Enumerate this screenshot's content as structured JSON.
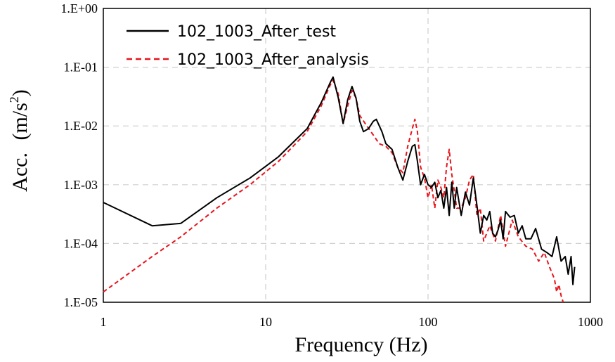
{
  "chart_data": {
    "type": "line",
    "scale": {
      "x": "log",
      "y": "log"
    },
    "xlabel": "Frequency (Hz)",
    "ylabel": "Acc. (m/s2)",
    "ylabel_parts": {
      "base": "Acc.",
      "unit_open": "(m/s",
      "unit_exp": "2",
      "unit_close": ")"
    },
    "xlim": [
      1,
      1000
    ],
    "ylim": [
      1e-05,
      1
    ],
    "x_ticks": [
      {
        "value": 1,
        "label": "1"
      },
      {
        "value": 10,
        "label": "10"
      },
      {
        "value": 100,
        "label": "100"
      },
      {
        "value": 1000,
        "label": "1000"
      }
    ],
    "y_ticks": [
      {
        "value": 1,
        "label": "1.E+00"
      },
      {
        "value": 0.1,
        "label": "1.E-01"
      },
      {
        "value": 0.01,
        "label": "1.E-02"
      },
      {
        "value": 0.001,
        "label": "1.E-03"
      },
      {
        "value": 0.0001,
        "label": "1.E-04"
      },
      {
        "value": 1e-05,
        "label": "1.E-05"
      }
    ],
    "grid": true,
    "legend_position": "top-left",
    "series": [
      {
        "name": "102_1003_After_test",
        "color": "#000000",
        "dash": "solid",
        "x": [
          1,
          2,
          3,
          5,
          8,
          12,
          18,
          22,
          25,
          26,
          28,
          30,
          32,
          34,
          36,
          38,
          40,
          43,
          46,
          48,
          52,
          55,
          60,
          65,
          70,
          75,
          80,
          83,
          86,
          90,
          95,
          100,
          105,
          110,
          115,
          120,
          125,
          130,
          135,
          140,
          145,
          150,
          160,
          170,
          180,
          190,
          200,
          210,
          220,
          230,
          240,
          250,
          260,
          270,
          280,
          290,
          300,
          320,
          340,
          360,
          380,
          400,
          430,
          460,
          500,
          540,
          580,
          620,
          660,
          700,
          730,
          760,
          780,
          800
        ],
        "y": [
          0.0005,
          0.0002,
          0.00022,
          0.0006,
          0.0013,
          0.003,
          0.009,
          0.025,
          0.055,
          0.068,
          0.03,
          0.011,
          0.028,
          0.047,
          0.03,
          0.012,
          0.008,
          0.009,
          0.012,
          0.013,
          0.008,
          0.005,
          0.004,
          0.002,
          0.0012,
          0.0025,
          0.0045,
          0.0048,
          0.0025,
          0.001,
          0.0015,
          0.001,
          0.0009,
          0.0011,
          0.0006,
          0.0008,
          0.0004,
          0.0009,
          0.0003,
          0.0011,
          0.0004,
          0.0009,
          0.0003,
          0.00075,
          0.00045,
          0.0013,
          0.00045,
          0.00015,
          0.0003,
          0.00025,
          0.00035,
          0.00015,
          0.00013,
          0.00017,
          0.00025,
          0.00012,
          0.00035,
          0.00028,
          0.0003,
          0.00015,
          0.0002,
          0.00012,
          0.00012,
          0.00018,
          8e-05,
          7e-05,
          6e-05,
          0.00013,
          5e-05,
          6e-05,
          3e-05,
          6e-05,
          2e-05,
          4e-05
        ]
      },
      {
        "name": "102_1003_After_analysis",
        "color": "#e8141c",
        "dash": "dashed",
        "x": [
          1,
          2,
          3,
          5,
          8,
          12,
          18,
          22,
          25,
          26,
          28,
          30,
          32,
          34,
          36,
          38,
          42,
          46,
          50,
          55,
          60,
          65,
          70,
          75,
          80,
          83,
          86,
          90,
          95,
          100,
          105,
          110,
          115,
          120,
          125,
          130,
          135,
          140,
          145,
          150,
          160,
          170,
          180,
          190,
          200,
          210,
          220,
          240,
          260,
          280,
          300,
          330,
          360,
          400,
          440,
          480,
          520,
          560,
          600,
          620,
          640,
          660,
          680
        ],
        "y": [
          1.5e-05,
          6e-05,
          0.00013,
          0.0004,
          0.001,
          0.0025,
          0.008,
          0.022,
          0.05,
          0.06,
          0.035,
          0.011,
          0.022,
          0.04,
          0.03,
          0.015,
          0.01,
          0.007,
          0.005,
          0.0045,
          0.0035,
          0.002,
          0.0016,
          0.0045,
          0.009,
          0.013,
          0.008,
          0.002,
          0.0013,
          0.0006,
          0.001,
          0.0004,
          0.0012,
          0.0009,
          0.0006,
          0.002,
          0.004,
          0.0015,
          0.0008,
          0.0004,
          0.0004,
          0.0006,
          0.0012,
          0.0015,
          0.0003,
          0.0004,
          0.00011,
          0.0002,
          0.00011,
          0.0003,
          9e-05,
          0.00025,
          0.00013,
          9e-05,
          8e-05,
          5e-05,
          7e-05,
          4e-05,
          2.5e-05,
          1.5e-05,
          2e-05,
          1.3e-05,
          1e-05
        ]
      }
    ]
  }
}
